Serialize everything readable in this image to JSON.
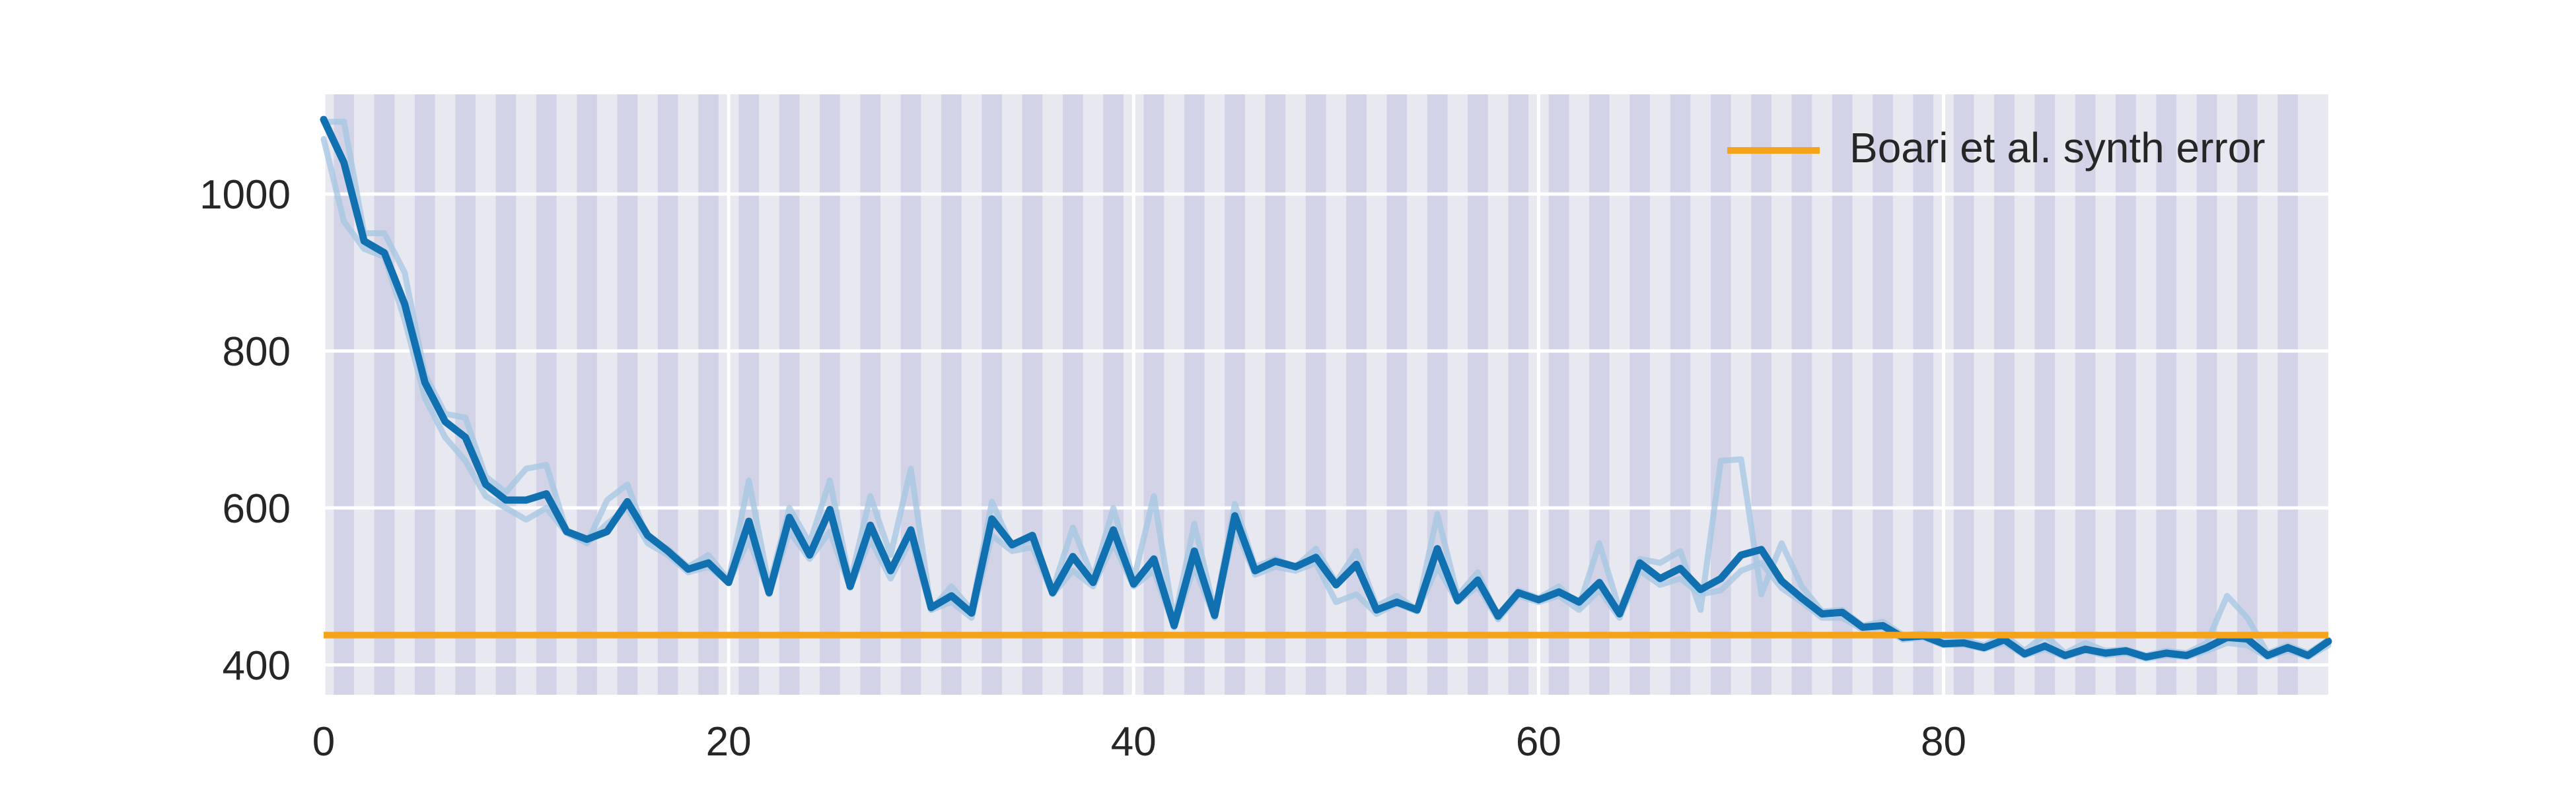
{
  "chart_data": {
    "type": "line",
    "xlim": [
      0,
      99
    ],
    "ylim": [
      362,
      1127
    ],
    "x_ticks": [
      0,
      20,
      40,
      60,
      80
    ],
    "y_ticks": [
      400,
      600,
      800,
      1000
    ],
    "grid": true,
    "legend_position": "top-right",
    "stripe_period": 2,
    "colors": {
      "background": "#e8e8f1",
      "stripe": "#d3d3e7",
      "grid": "#ffffff",
      "main_line": "#1070b0",
      "faint_line": "#a9c8e3",
      "reference": "#f5a31a"
    },
    "reference_line": {
      "label": "Boari et al. synth error",
      "y": 438
    },
    "series": [
      {
        "role": "main",
        "values": [
          1095,
          1040,
          940,
          925,
          860,
          760,
          710,
          690,
          630,
          610,
          610,
          618,
          570,
          560,
          570,
          608,
          565,
          545,
          522,
          530,
          505,
          583,
          492,
          588,
          540,
          598,
          500,
          578,
          520,
          572,
          473,
          488,
          466,
          586,
          553,
          565,
          492,
          538,
          505,
          572,
          503,
          535,
          450,
          545,
          463,
          590,
          520,
          532,
          525,
          537,
          502,
          528,
          470,
          480,
          470,
          548,
          482,
          508,
          462,
          492,
          483,
          493,
          480,
          505,
          465,
          530,
          510,
          523,
          496,
          510,
          540,
          547,
          507,
          485,
          465,
          467,
          448,
          450,
          435,
          437,
          427,
          428,
          422,
          432,
          414,
          424,
          412,
          420,
          415,
          418,
          410,
          415,
          412,
          422,
          435,
          433,
          412,
          422,
          412,
          430
        ]
      },
      {
        "role": "faint",
        "values": [
          1092,
          1092,
          950,
          950,
          900,
          770,
          720,
          715,
          640,
          620,
          650,
          655,
          570,
          555,
          610,
          630,
          560,
          548,
          525,
          540,
          508,
          635,
          500,
          600,
          555,
          635,
          505,
          615,
          540,
          650,
          470,
          500,
          470,
          608,
          550,
          560,
          495,
          575,
          510,
          600,
          508,
          615,
          455,
          580,
          468,
          605,
          525,
          535,
          525,
          548,
          505,
          545,
          475,
          488,
          470,
          592,
          488,
          518,
          460,
          495,
          485,
          500,
          475,
          555,
          470,
          535,
          530,
          545,
          470,
          660,
          662,
          490,
          555,
          500,
          468,
          470,
          450,
          455,
          438,
          440,
          432,
          432,
          425,
          438,
          418,
          438,
          415,
          428,
          418,
          420,
          412,
          418,
          415,
          428,
          488,
          460,
          415,
          425,
          415,
          432
        ]
      },
      {
        "role": "faint",
        "values": [
          1070,
          965,
          930,
          920,
          840,
          740,
          690,
          660,
          615,
          600,
          585,
          600,
          568,
          555,
          580,
          600,
          555,
          540,
          518,
          525,
          505,
          560,
          490,
          570,
          535,
          570,
          498,
          560,
          510,
          560,
          470,
          480,
          460,
          565,
          545,
          550,
          490,
          520,
          500,
          555,
          500,
          520,
          448,
          525,
          460,
          575,
          515,
          525,
          520,
          530,
          480,
          490,
          465,
          478,
          468,
          525,
          480,
          500,
          458,
          488,
          480,
          488,
          470,
          495,
          460,
          520,
          502,
          510,
          490,
          495,
          520,
          530,
          498,
          480,
          460,
          460,
          445,
          448,
          432,
          435,
          425,
          426,
          420,
          428,
          412,
          420,
          410,
          418,
          412,
          415,
          408,
          412,
          410,
          418,
          428,
          425,
          410,
          418,
          410,
          425
        ]
      }
    ]
  }
}
